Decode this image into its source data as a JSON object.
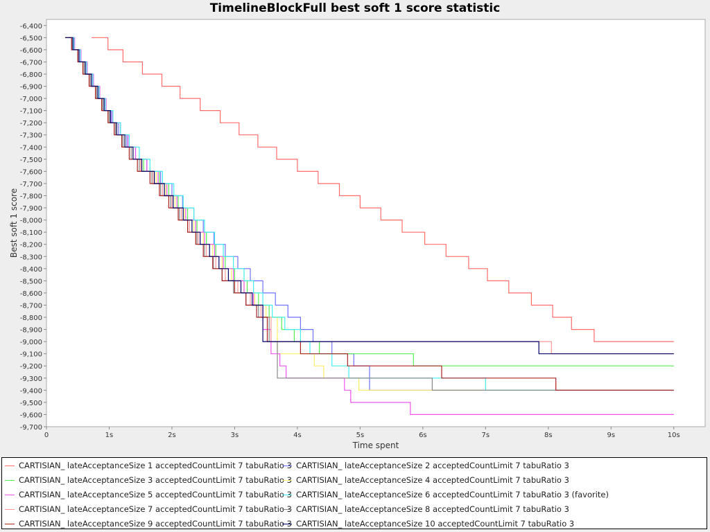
{
  "chart_data": {
    "type": "line",
    "title": "TimelineBlockFull best soft 1 score statistic",
    "xlabel": "Time spent",
    "ylabel": "Best soft 1 score",
    "xlim": [
      0,
      10.5
    ],
    "ylim": [
      -9700,
      -6350
    ],
    "grid": false,
    "legend_position": "bottom",
    "x_ticks": [
      0,
      1,
      2,
      3,
      4,
      5,
      6,
      7,
      8,
      9,
      10
    ],
    "x_tick_labels": [
      "0",
      "1s",
      "2s",
      "3s",
      "4s",
      "5s",
      "6s",
      "7s",
      "8s",
      "9s",
      "10s"
    ],
    "y_ticks": [
      -6400,
      -6500,
      -6600,
      -6700,
      -6800,
      -6900,
      -7000,
      -7100,
      -7200,
      -7300,
      -7400,
      -7500,
      -7600,
      -7700,
      -7800,
      -7900,
      -8000,
      -8100,
      -8200,
      -8300,
      -8400,
      -8500,
      -8600,
      -8700,
      -8800,
      -8900,
      -9000,
      -9100,
      -9200,
      -9300,
      -9400,
      -9500,
      -9600,
      -9700
    ],
    "y_tick_labels": [
      "-6,400",
      "-6,500",
      "-6,600",
      "-6,700",
      "-6,800",
      "-6,900",
      "-7,000",
      "-7,100",
      "-7,200",
      "-7,300",
      "-7,400",
      "-7,500",
      "-7,600",
      "-7,700",
      "-7,800",
      "-7,900",
      "-8,000",
      "-8,100",
      "-8,200",
      "-8,300",
      "-8,400",
      "-8,500",
      "-8,600",
      "-8,700",
      "-8,800",
      "-8,900",
      "-9,000",
      "-9,100",
      "-9,200",
      "-9,300",
      "-9,400",
      "-9,500",
      "-9,600",
      "-9,700"
    ],
    "series": [
      {
        "name": "CARTISIAN_ lateAcceptanceSize 1 acceptedCountLimit 7 tabuRatio 3",
        "color": "#ff6b6b",
        "x": [
          0.72,
          0.98,
          1.22,
          1.53,
          1.84,
          2.13,
          2.45,
          2.77,
          3.07,
          3.37,
          3.67,
          4.0,
          4.33,
          4.67,
          5.0,
          5.33,
          5.67,
          6.03,
          6.37,
          6.73,
          7.03,
          7.37,
          7.73,
          8.07,
          8.37,
          8.73,
          9.0,
          10.0
        ],
        "y": [
          -6500,
          -6600,
          -6700,
          -6800,
          -6900,
          -7000,
          -7100,
          -7200,
          -7300,
          -7400,
          -7500,
          -7600,
          -7700,
          -7800,
          -7900,
          -8000,
          -8100,
          -8200,
          -8300,
          -8400,
          -8500,
          -8600,
          -8700,
          -8800,
          -8900,
          -9000,
          -9000,
          -9000
        ]
      },
      {
        "name": "CARTISIAN_ lateAcceptanceSize 2 acceptedCountLimit 7 tabuRatio 3",
        "color": "#7070ff",
        "x": [
          0.3,
          0.43,
          0.52,
          0.62,
          0.72,
          0.82,
          0.92,
          1.03,
          1.15,
          1.28,
          1.42,
          1.6,
          1.82,
          2.0,
          2.17,
          2.35,
          2.5,
          2.67,
          2.85,
          3.05,
          3.25,
          3.45,
          3.65,
          3.85,
          4.05,
          4.25,
          4.55,
          4.9,
          5.15,
          10.0
        ],
        "y": [
          -6500,
          -6600,
          -6700,
          -6800,
          -6900,
          -7000,
          -7100,
          -7200,
          -7300,
          -7400,
          -7500,
          -7600,
          -7700,
          -7800,
          -7900,
          -8000,
          -8100,
          -8200,
          -8300,
          -8400,
          -8500,
          -8600,
          -8700,
          -8800,
          -8900,
          -9000,
          -9100,
          -9200,
          -9400,
          -9400
        ]
      },
      {
        "name": "CARTISIAN_ lateAcceptanceSize 3 acceptedCountLimit 7 tabuRatio 3",
        "color": "#55ee55",
        "x": [
          0.3,
          0.42,
          0.5,
          0.6,
          0.7,
          0.8,
          0.9,
          1.0,
          1.12,
          1.25,
          1.38,
          1.55,
          1.8,
          1.95,
          2.1,
          2.25,
          2.4,
          2.55,
          2.7,
          2.85,
          3.0,
          3.2,
          3.38,
          3.55,
          3.75,
          3.95,
          4.35,
          5.85,
          10.0
        ],
        "y": [
          -6500,
          -6600,
          -6700,
          -6800,
          -6900,
          -7000,
          -7100,
          -7200,
          -7300,
          -7400,
          -7500,
          -7600,
          -7700,
          -7800,
          -7900,
          -8000,
          -8100,
          -8200,
          -8300,
          -8400,
          -8500,
          -8600,
          -8700,
          -8800,
          -8900,
          -9000,
          -9100,
          -9200,
          -9200
        ]
      },
      {
        "name": "CARTISIAN_ lateAcceptanceSize 4 acceptedCountLimit 7 tabuRatio 3",
        "color": "#ffee66",
        "x": [
          0.3,
          0.42,
          0.5,
          0.6,
          0.7,
          0.8,
          0.9,
          1.0,
          1.12,
          1.25,
          1.38,
          1.52,
          1.75,
          1.9,
          2.05,
          2.2,
          2.35,
          2.5,
          2.65,
          2.8,
          2.95,
          3.15,
          3.32,
          3.5,
          3.68,
          4.27,
          4.42,
          4.98,
          10.0
        ],
        "y": [
          -6500,
          -6600,
          -6700,
          -6800,
          -6900,
          -7000,
          -7100,
          -7200,
          -7300,
          -7400,
          -7500,
          -7600,
          -7700,
          -7800,
          -7900,
          -8000,
          -8100,
          -8200,
          -8300,
          -8400,
          -8500,
          -8600,
          -8700,
          -8800,
          -9100,
          -9200,
          -9300,
          -9400,
          -9400
        ]
      },
      {
        "name": "CARTISIAN_ lateAcceptanceSize 5 acceptedCountLimit 7 tabuRatio 3",
        "color": "#ee55ee",
        "x": [
          0.3,
          0.45,
          0.55,
          0.65,
          0.75,
          0.85,
          0.95,
          1.05,
          1.18,
          1.3,
          1.42,
          1.6,
          1.78,
          1.92,
          2.08,
          2.22,
          2.38,
          2.52,
          2.68,
          2.82,
          2.98,
          3.15,
          3.3,
          3.45,
          3.58,
          3.72,
          3.82,
          4.75,
          4.85,
          5.8,
          10.0
        ],
        "y": [
          -6500,
          -6600,
          -6700,
          -6800,
          -6900,
          -7000,
          -7100,
          -7200,
          -7300,
          -7400,
          -7500,
          -7600,
          -7700,
          -7800,
          -7900,
          -8000,
          -8100,
          -8200,
          -8300,
          -8400,
          -8500,
          -8600,
          -8700,
          -8900,
          -9100,
          -9200,
          -9300,
          -9400,
          -9500,
          -9600,
          -9600
        ]
      },
      {
        "name": "CARTISIAN_ lateAcceptanceSize 6 acceptedCountLimit 7 tabuRatio 3 (favorite)",
        "color": "#44eeee",
        "x": [
          0.3,
          0.44,
          0.54,
          0.64,
          0.74,
          0.84,
          0.94,
          1.06,
          1.18,
          1.32,
          1.48,
          1.65,
          1.85,
          2.03,
          2.18,
          2.35,
          2.52,
          2.68,
          2.82,
          2.98,
          3.15,
          3.3,
          3.45,
          3.6,
          3.8,
          4.05,
          4.2,
          4.55,
          4.82,
          5.0,
          7.0,
          10.0
        ],
        "y": [
          -6500,
          -6600,
          -6700,
          -6800,
          -6900,
          -7000,
          -7100,
          -7200,
          -7300,
          -7400,
          -7500,
          -7600,
          -7700,
          -7800,
          -7900,
          -8000,
          -8100,
          -8200,
          -8300,
          -8400,
          -8500,
          -8600,
          -8700,
          -8800,
          -8900,
          -9000,
          -9100,
          -9200,
          -9300,
          -9300,
          -9400,
          -9400
        ]
      },
      {
        "name": "CARTISIAN_ lateAcceptanceSize 7 acceptedCountLimit 7 tabuRatio 3",
        "color": "#ff9999",
        "x": [
          0.3,
          0.4,
          0.5,
          0.6,
          0.7,
          0.8,
          0.9,
          1.0,
          1.1,
          1.22,
          1.35,
          1.5,
          1.7,
          1.85,
          2.0,
          2.15,
          2.28,
          2.42,
          2.55,
          2.7,
          2.85,
          3.05,
          3.25,
          3.42,
          3.58,
          8.05,
          10.0
        ],
        "y": [
          -6500,
          -6600,
          -6700,
          -6800,
          -6900,
          -7000,
          -7100,
          -7200,
          -7300,
          -7400,
          -7500,
          -7600,
          -7700,
          -7800,
          -7900,
          -8000,
          -8100,
          -8200,
          -8300,
          -8400,
          -8500,
          -8600,
          -8700,
          -8800,
          -9000,
          -9100,
          -9100
        ]
      },
      {
        "name": "CARTISIAN_ lateAcceptanceSize 8 acceptedCountLimit 7 tabuRatio 3",
        "color": "#888888",
        "x": [
          0.3,
          0.4,
          0.5,
          0.6,
          0.7,
          0.8,
          0.9,
          1.0,
          1.1,
          1.22,
          1.35,
          1.48,
          1.68,
          1.82,
          1.98,
          2.12,
          2.25,
          2.4,
          2.52,
          2.66,
          2.8,
          2.98,
          3.18,
          3.38,
          3.55,
          3.68,
          6.15,
          10.0
        ],
        "y": [
          -6500,
          -6600,
          -6700,
          -6800,
          -6900,
          -7000,
          -7100,
          -7200,
          -7300,
          -7400,
          -7500,
          -7600,
          -7700,
          -7800,
          -7900,
          -8000,
          -8100,
          -8200,
          -8300,
          -8400,
          -8500,
          -8600,
          -8700,
          -8800,
          -9000,
          -9300,
          -9400,
          -9400
        ]
      },
      {
        "name": "CARTISIAN_ lateAcceptanceSize 9 acceptedCountLimit 7 tabuRatio 3",
        "color": "#aa2222",
        "x": [
          0.3,
          0.4,
          0.5,
          0.58,
          0.68,
          0.78,
          0.88,
          0.98,
          1.08,
          1.2,
          1.32,
          1.45,
          1.65,
          1.8,
          1.95,
          2.1,
          2.25,
          2.38,
          2.5,
          2.65,
          2.8,
          3.0,
          3.18,
          3.35,
          3.52,
          4.05,
          4.8,
          6.3,
          8.12,
          10.0
        ],
        "y": [
          -6500,
          -6600,
          -6700,
          -6800,
          -6900,
          -7000,
          -7100,
          -7200,
          -7300,
          -7400,
          -7500,
          -7600,
          -7700,
          -7800,
          -7900,
          -8000,
          -8100,
          -8200,
          -8300,
          -8400,
          -8500,
          -8600,
          -8700,
          -8800,
          -9000,
          -9100,
          -9200,
          -9300,
          -9400,
          -9400
        ]
      },
      {
        "name": "CARTISIAN_ lateAcceptanceSize 10 acceptedCountLimit 7 tabuRatio 3",
        "color": "#000066",
        "x": [
          0.3,
          0.42,
          0.52,
          0.62,
          0.72,
          0.82,
          0.92,
          1.02,
          1.12,
          1.25,
          1.38,
          1.52,
          1.72,
          1.88,
          2.02,
          2.18,
          2.32,
          2.45,
          2.6,
          2.75,
          2.9,
          3.1,
          3.28,
          3.45,
          7.85,
          8.05,
          10.0
        ],
        "y": [
          -6500,
          -6600,
          -6700,
          -6800,
          -6900,
          -7000,
          -7100,
          -7200,
          -7300,
          -7400,
          -7500,
          -7600,
          -7700,
          -7800,
          -7900,
          -8000,
          -8100,
          -8200,
          -8300,
          -8400,
          -8500,
          -8600,
          -8700,
          -9000,
          -9100,
          -9100,
          -9100
        ]
      }
    ]
  }
}
